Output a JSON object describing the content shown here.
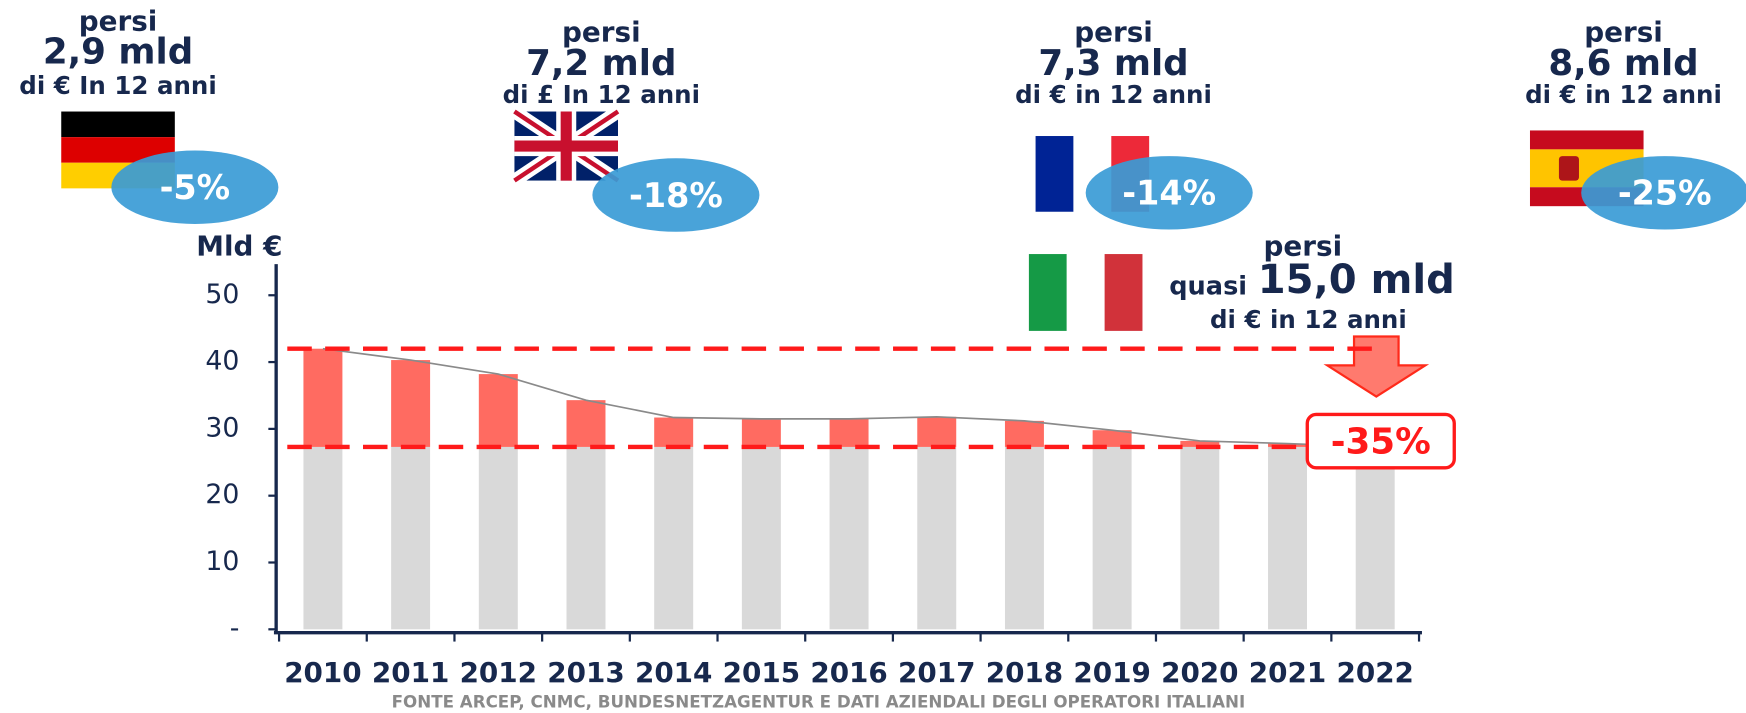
{
  "chart_data": {
    "type": "bar",
    "y_axis_label": "Mld €",
    "categories": [
      "2010",
      "2011",
      "2012",
      "2013",
      "2014",
      "2015",
      "2016",
      "2017",
      "2018",
      "2019",
      "2020",
      "2021",
      "2022"
    ],
    "values": [
      42,
      40.3,
      38.2,
      34.3,
      31.7,
      31.5,
      31.5,
      31.8,
      31.2,
      29.8,
      28.2,
      27.8,
      27.3
    ],
    "base_color": "#d9d9d9",
    "loss_color": "#ff6b61",
    "line_color": "#8a8a8a",
    "reference_lines": [
      42,
      27.3
    ],
    "reference_color": "#ff1a1a",
    "ylim": [
      0,
      50
    ],
    "yticks": [
      {
        "value": 0,
        "label": "-"
      },
      10,
      20,
      30,
      40,
      50
    ],
    "annotations": [
      {
        "lines": [
          "persi",
          "2,9 mld",
          "di € In 12 anni"
        ],
        "badge": "-5%"
      },
      {
        "lines": [
          "persi",
          "7,2 mld",
          "di £ In 12 anni"
        ],
        "badge": "-18%"
      },
      {
        "lines": [
          "persi",
          "7,3 mld",
          "di € in 12 anni"
        ],
        "badge": "-14%"
      },
      {
        "lines": [
          "persi",
          "8,6 mld",
          "di € in 12 anni"
        ],
        "badge": "-25%"
      },
      {
        "lines": [
          "persi",
          "quasi",
          "15,0 mld",
          "di € in 12 anni"
        ],
        "badge": "-35%"
      }
    ],
    "source": "FONTE ARCEP, CNMC, BUNDESNETZAGENTUR E DATI AZIENDALI DEGLI OPERATORI ITALIANI"
  }
}
